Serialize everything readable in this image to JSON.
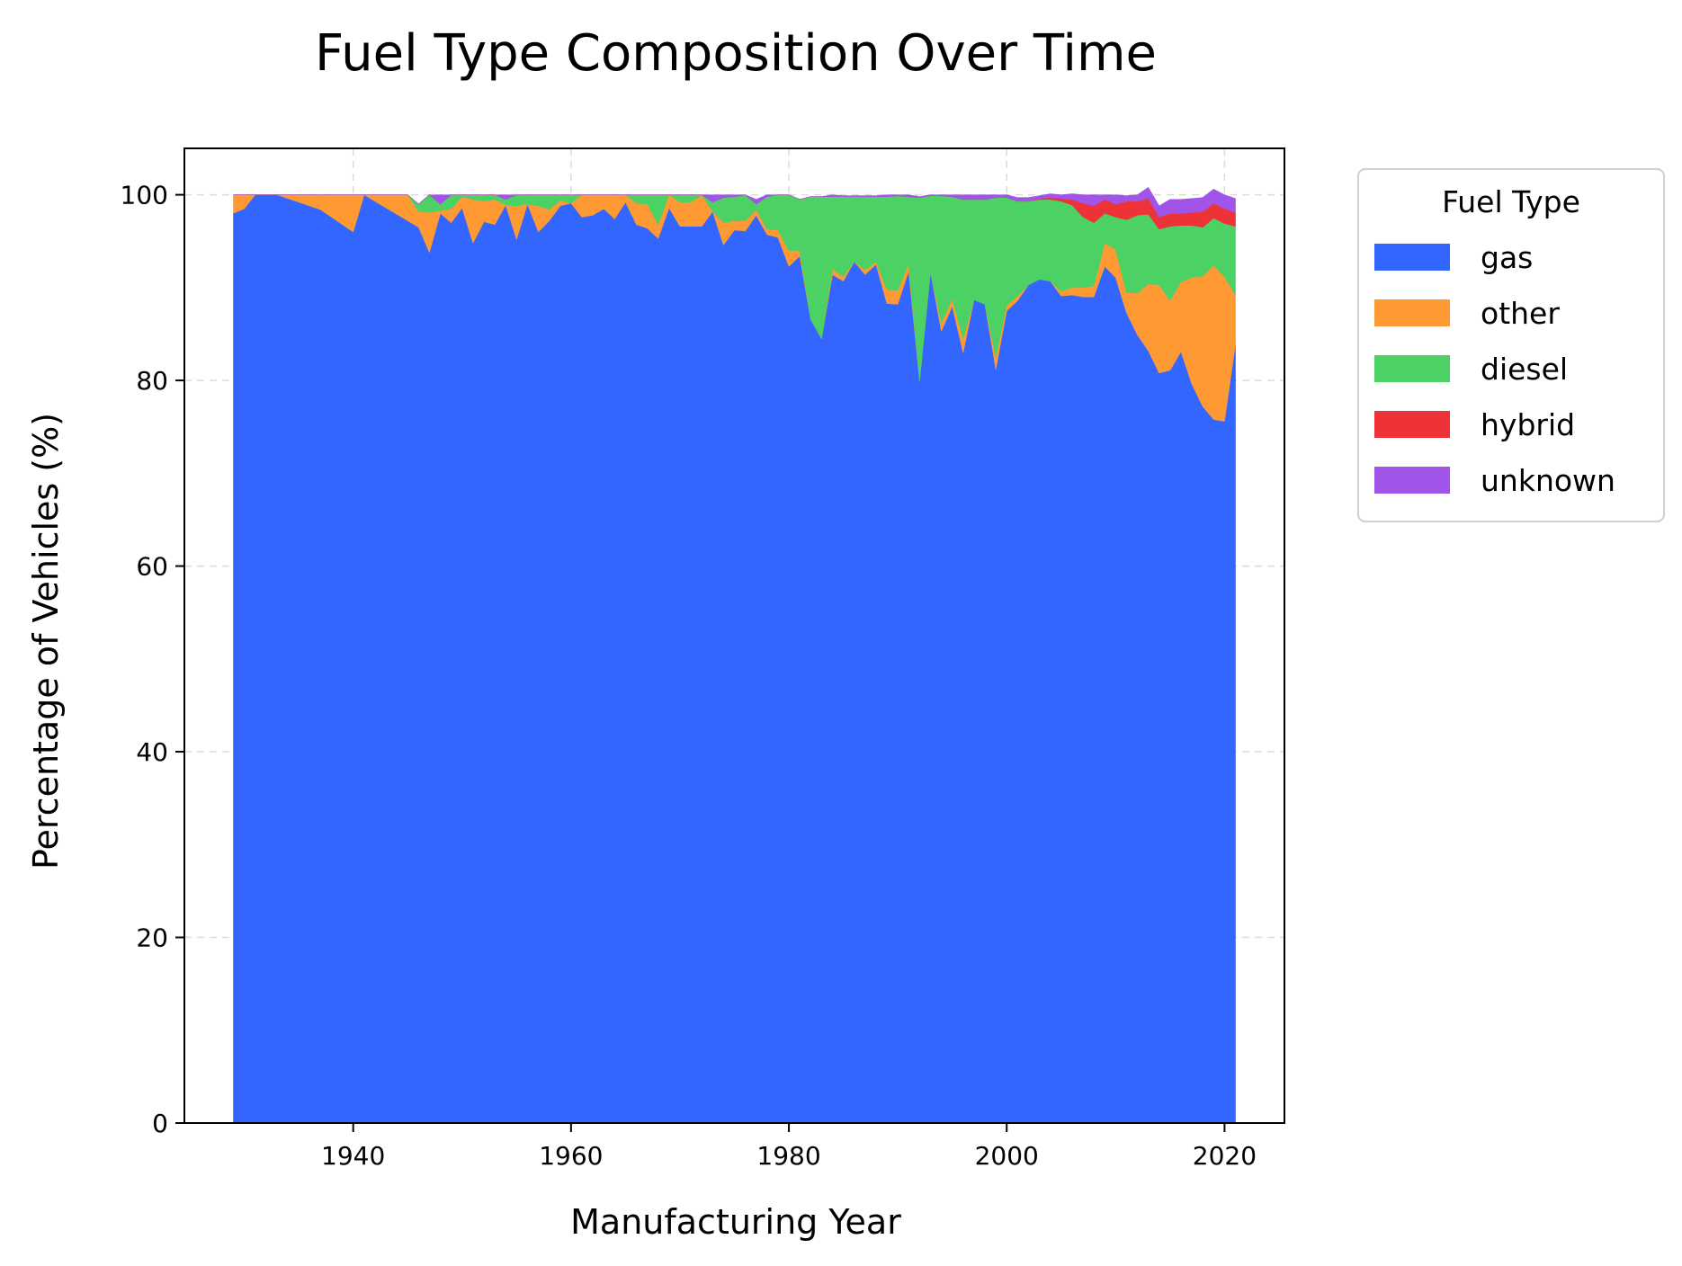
{
  "chart_data": {
    "type": "area",
    "stacked": true,
    "title": "Fuel Type Composition Over Time",
    "xlabel": "Manufacturing Year",
    "ylabel": "Percentage of Vehicles (%)",
    "xlim": [
      1924.5,
      2025.5
    ],
    "ylim": [
      0,
      105
    ],
    "xticks": [
      1940,
      1960,
      1980,
      2000,
      2020
    ],
    "yticks": [
      0,
      20,
      40,
      60,
      80,
      100
    ],
    "grid": true,
    "legend": {
      "title": "Fuel Type",
      "placement": "outside-top-right"
    },
    "x": [
      1929,
      1930,
      1931,
      1932,
      1933,
      1934,
      1935,
      1936,
      1937,
      1938,
      1939,
      1940,
      1941,
      1942,
      1943,
      1944,
      1945,
      1946,
      1947,
      1948,
      1949,
      1950,
      1951,
      1952,
      1953,
      1954,
      1955,
      1956,
      1957,
      1958,
      1959,
      1960,
      1961,
      1962,
      1963,
      1964,
      1965,
      1966,
      1967,
      1968,
      1969,
      1970,
      1971,
      1972,
      1973,
      1974,
      1975,
      1976,
      1977,
      1978,
      1979,
      1980,
      1981,
      1982,
      1983,
      1984,
      1985,
      1986,
      1987,
      1988,
      1989,
      1990,
      1991,
      1992,
      1993,
      1994,
      1995,
      1996,
      1997,
      1998,
      1999,
      2000,
      2001,
      2002,
      2003,
      2004,
      2005,
      2006,
      2007,
      2008,
      2009,
      2010,
      2011,
      2012,
      2013,
      2014,
      2015,
      2016,
      2017,
      2018,
      2019,
      2020,
      2021
    ],
    "series": [
      {
        "name": "gas",
        "color": "#3366ff",
        "values": [
          98,
          98.5,
          100,
          100,
          100,
          99.6,
          99.2,
          98.8,
          98.4,
          97.6,
          96.8,
          96,
          100,
          99.3,
          98.6,
          97.9,
          97.2,
          96.5,
          93.8,
          98,
          97,
          98.6,
          94.8,
          97.1,
          96.8,
          98.9,
          95.2,
          99,
          96,
          97.2,
          98.8,
          99.1,
          97.6,
          97.8,
          98.5,
          97.4,
          99.2,
          96.8,
          96.4,
          95.3,
          98.6,
          96.6,
          96.6,
          96.6,
          98.2,
          94.6,
          96.2,
          96.1,
          97.8,
          95.7,
          95.4,
          92.3,
          93.4,
          86.6,
          84.5,
          91.4,
          90.7,
          92.8,
          91.4,
          92.5,
          88.3,
          88.2,
          91.8,
          80,
          91.7,
          85.3,
          88,
          83,
          88.7,
          88.2,
          81.2,
          87.5,
          88.6,
          90.3,
          90.9,
          90.7,
          89.1,
          89.2,
          89,
          89,
          92.3,
          91.1,
          87.3,
          84.9,
          83.2,
          80.8,
          81.1,
          83.1,
          79.6,
          77.2,
          75.8,
          75.6,
          83.9
        ]
      },
      {
        "name": "other",
        "color": "#ff9933",
        "values": [
          2,
          1.5,
          0,
          0,
          0,
          0.4,
          0.8,
          1.2,
          1.6,
          2.4,
          3.2,
          4,
          0,
          0.7,
          1.4,
          2.1,
          2.8,
          1.7,
          4.3,
          0.3,
          1.5,
          1.2,
          4.7,
          2.2,
          2.7,
          0,
          3.6,
          0,
          2.8,
          1.2,
          0.6,
          0,
          2.4,
          2.2,
          1.5,
          2.6,
          0.8,
          2.3,
          2.6,
          1.5,
          1.4,
          2.6,
          2.6,
          3.4,
          0,
          2.4,
          1,
          1.1,
          0.6,
          0.6,
          0.8,
          1.7,
          0.6,
          0,
          0,
          0.6,
          0.5,
          0,
          0.5,
          0.3,
          1.5,
          1.5,
          0.8,
          0,
          0,
          0.9,
          0.8,
          1.5,
          0,
          0,
          1.3,
          0.6,
          0.5,
          0,
          0,
          0,
          0.5,
          0.8,
          1,
          1.2,
          2.5,
          3,
          2.2,
          4.5,
          7.2,
          9.5,
          7.5,
          7.5,
          11.5,
          14,
          16.6,
          15.6,
          5.3
        ]
      },
      {
        "name": "diesel",
        "color": "#4cd264",
        "values": [
          0,
          0,
          0,
          0,
          0,
          0,
          0,
          0,
          0,
          0,
          0,
          0,
          0,
          0,
          0,
          0,
          0,
          0.8,
          1.9,
          0.7,
          1.5,
          0.2,
          0.5,
          0.7,
          0.5,
          0.6,
          1.2,
          1,
          1.2,
          1.6,
          0.6,
          0.9,
          0,
          0,
          0,
          0,
          0,
          0.9,
          1,
          3.2,
          0,
          0.8,
          0.8,
          0,
          1,
          2.7,
          2.6,
          2.8,
          0.6,
          3.5,
          3.8,
          6,
          5.5,
          13.2,
          15.3,
          7.8,
          8.6,
          7,
          7.9,
          7,
          10,
          10.2,
          7.2,
          19.7,
          8.2,
          13.7,
          11,
          15,
          10.8,
          11.3,
          17.2,
          11.6,
          10.2,
          9,
          8.6,
          8.8,
          9.7,
          8.9,
          7.6,
          6.8,
          3.2,
          3.5,
          7.8,
          8.4,
          7.5,
          6,
          8,
          6.1,
          5.6,
          5.3,
          5.1,
          5.7,
          7.4
        ]
      },
      {
        "name": "hybrid",
        "color": "#ee3338",
        "values": [
          0,
          0,
          0,
          0,
          0,
          0,
          0,
          0,
          0,
          0,
          0,
          0,
          0,
          0,
          0,
          0,
          0,
          0,
          0,
          0,
          0,
          0,
          0,
          0,
          0,
          0,
          0,
          0,
          0,
          0,
          0,
          0,
          0,
          0,
          0,
          0,
          0,
          0,
          0,
          0,
          0,
          0,
          0,
          0,
          0,
          0,
          0,
          0,
          0,
          0,
          0,
          0,
          0,
          0,
          0,
          0,
          0,
          0,
          0,
          0,
          0,
          0,
          0,
          0,
          0,
          0,
          0,
          0,
          0,
          0,
          0,
          0,
          0,
          0,
          0.1,
          0.2,
          0.3,
          0.6,
          1.5,
          1.8,
          1.5,
          1.4,
          2,
          1.5,
          1.7,
          1.3,
          1.4,
          1.3,
          1.4,
          1.7,
          1.6,
          1.6,
          1.5
        ]
      },
      {
        "name": "unknown",
        "color": "#a055e8",
        "values": [
          0,
          0,
          0,
          0,
          0,
          0,
          0,
          0,
          0,
          0,
          0,
          0,
          0,
          0,
          0,
          0,
          0,
          0,
          0,
          1,
          0,
          0,
          0,
          0,
          0,
          0.5,
          0,
          0,
          0,
          0,
          0,
          0,
          0,
          0,
          0,
          0,
          0,
          0,
          0,
          0,
          0,
          0,
          0,
          0,
          0.8,
          0.3,
          0.2,
          0,
          0.5,
          0.2,
          0,
          0,
          0,
          0,
          0,
          0.2,
          0.1,
          0.1,
          0.1,
          0.1,
          0.2,
          0.1,
          0.2,
          0.1,
          0.1,
          0.1,
          0.2,
          0.5,
          0.5,
          0.5,
          0.3,
          0.3,
          0.4,
          0.4,
          0.3,
          0.4,
          0.4,
          0.6,
          0.9,
          1.2,
          0.5,
          1,
          0.6,
          0.7,
          1.2,
          1.2,
          1.5,
          1.5,
          1.5,
          1.5,
          1.5,
          1.5,
          1.5
        ]
      }
    ]
  }
}
